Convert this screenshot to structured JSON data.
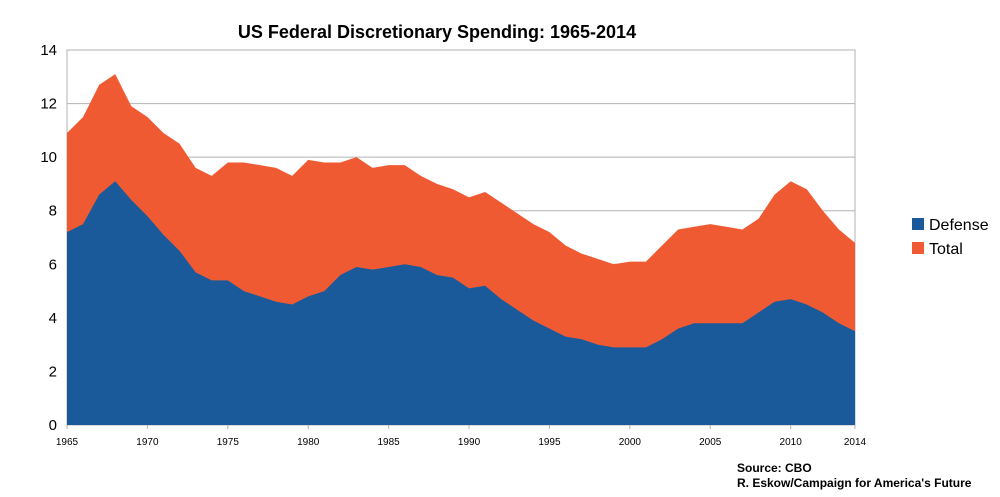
{
  "chart_data": {
    "type": "area",
    "title": "US Federal Discretionary Spending: 1965-2014",
    "xlabel": "",
    "ylabel": "",
    "xlim": [
      1965,
      2014
    ],
    "ylim": [
      0,
      14
    ],
    "y_ticks": [
      "0",
      "2",
      "4",
      "6",
      "8",
      "10",
      "12",
      "14"
    ],
    "x_ticks": [
      "1965",
      "1970",
      "1975",
      "1980",
      "1985",
      "1990",
      "1995",
      "2000",
      "2005",
      "2010",
      "2014"
    ],
    "grid": true,
    "legend_position": "right",
    "x": [
      1965,
      1966,
      1967,
      1968,
      1969,
      1970,
      1971,
      1972,
      1973,
      1974,
      1975,
      1976,
      1977,
      1978,
      1979,
      1980,
      1981,
      1982,
      1983,
      1984,
      1985,
      1986,
      1987,
      1988,
      1989,
      1990,
      1991,
      1992,
      1993,
      1994,
      1995,
      1996,
      1997,
      1998,
      1999,
      2000,
      2001,
      2002,
      2003,
      2004,
      2005,
      2006,
      2007,
      2008,
      2009,
      2010,
      2011,
      2012,
      2013,
      2014
    ],
    "series": [
      {
        "name": "Defense",
        "color": "#1a5a9a",
        "values": [
          7.2,
          7.5,
          8.6,
          9.1,
          8.4,
          7.8,
          7.1,
          6.5,
          5.7,
          5.4,
          5.4,
          5.0,
          4.8,
          4.6,
          4.5,
          4.8,
          5.0,
          5.6,
          5.9,
          5.8,
          5.9,
          6.0,
          5.9,
          5.6,
          5.5,
          5.1,
          5.2,
          4.7,
          4.3,
          3.9,
          3.6,
          3.3,
          3.2,
          3.0,
          2.9,
          2.9,
          2.9,
          3.2,
          3.6,
          3.8,
          3.8,
          3.8,
          3.8,
          4.2,
          4.6,
          4.7,
          4.5,
          4.2,
          3.8,
          3.5
        ]
      },
      {
        "name": "Total",
        "color": "#f05a32",
        "values": [
          10.9,
          11.5,
          12.7,
          13.1,
          11.9,
          11.5,
          10.9,
          10.5,
          9.6,
          9.3,
          9.8,
          9.8,
          9.7,
          9.6,
          9.3,
          9.9,
          9.8,
          9.8,
          10.0,
          9.6,
          9.7,
          9.7,
          9.3,
          9.0,
          8.8,
          8.5,
          8.7,
          8.3,
          7.9,
          7.5,
          7.2,
          6.7,
          6.4,
          6.2,
          6.0,
          6.1,
          6.1,
          6.7,
          7.3,
          7.4,
          7.5,
          7.4,
          7.3,
          7.7,
          8.6,
          9.1,
          8.8,
          8.0,
          7.3,
          6.8
        ]
      }
    ]
  },
  "source": {
    "line1": "Source: CBO",
    "line2": "R. Eskow/Campaign for America's Future"
  }
}
